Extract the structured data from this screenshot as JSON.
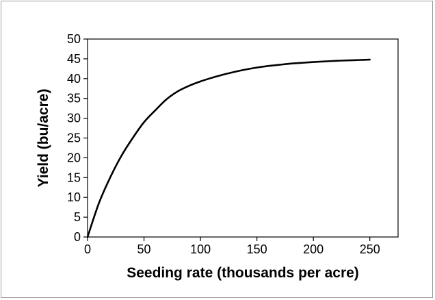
{
  "chart_data": {
    "type": "line",
    "title": "",
    "xlabel": "Seeding rate (thousands per acre)",
    "ylabel": "Yield (bu/acre)",
    "xlim": [
      0,
      275
    ],
    "ylim": [
      0,
      50
    ],
    "xticks": [
      0,
      50,
      100,
      150,
      200,
      250
    ],
    "yticks": [
      0,
      5,
      10,
      15,
      20,
      25,
      30,
      35,
      40,
      45,
      50
    ],
    "grid": false,
    "legend": "none",
    "series": [
      {
        "color": "#000000",
        "x": [
          0,
          10,
          20,
          30,
          40,
          50,
          60,
          70,
          80,
          90,
          100,
          110,
          120,
          130,
          140,
          150,
          160,
          170,
          180,
          190,
          200,
          210,
          220,
          230,
          240,
          250
        ],
        "y": [
          0,
          8.5,
          15,
          20.5,
          25.0,
          29.0,
          32.0,
          34.8,
          36.8,
          38.2,
          39.3,
          40.2,
          41.0,
          41.7,
          42.3,
          42.8,
          43.2,
          43.5,
          43.8,
          44.0,
          44.2,
          44.35,
          44.5,
          44.6,
          44.7,
          44.8
        ]
      }
    ]
  }
}
